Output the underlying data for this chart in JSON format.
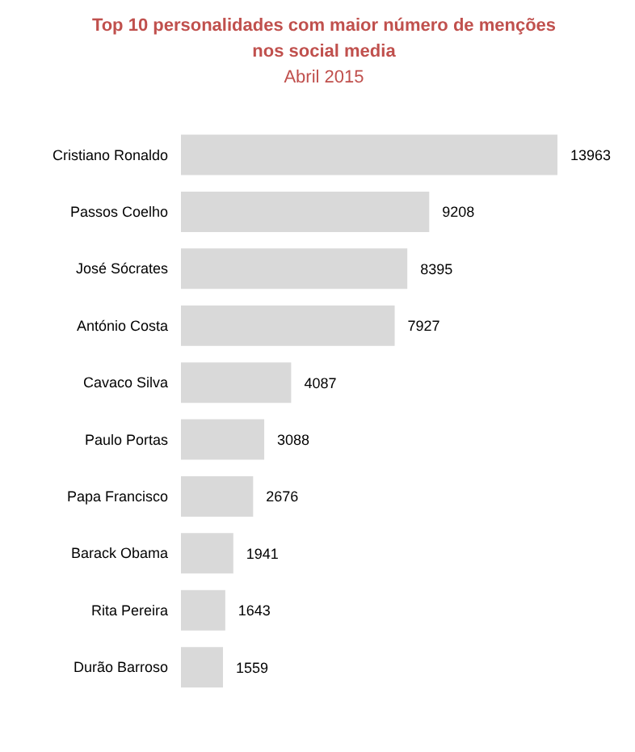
{
  "chart_data": {
    "type": "bar",
    "orientation": "horizontal",
    "title": "Top 10 personalidades com maior número de menções nos social media",
    "subtitle": "Abril 2015",
    "categories": [
      "Cristiano Ronaldo",
      "Passos Coelho",
      "José Sócrates",
      "António Costa",
      "Cavaco Silva",
      "Paulo Portas",
      "Papa Francisco",
      "Barack Obama",
      "Rita Pereira",
      "Durão Barroso"
    ],
    "values": [
      13963,
      9208,
      8395,
      7927,
      4087,
      3088,
      2676,
      1941,
      1643,
      1559
    ],
    "color": "#d9d9d9",
    "data_labels": true
  }
}
